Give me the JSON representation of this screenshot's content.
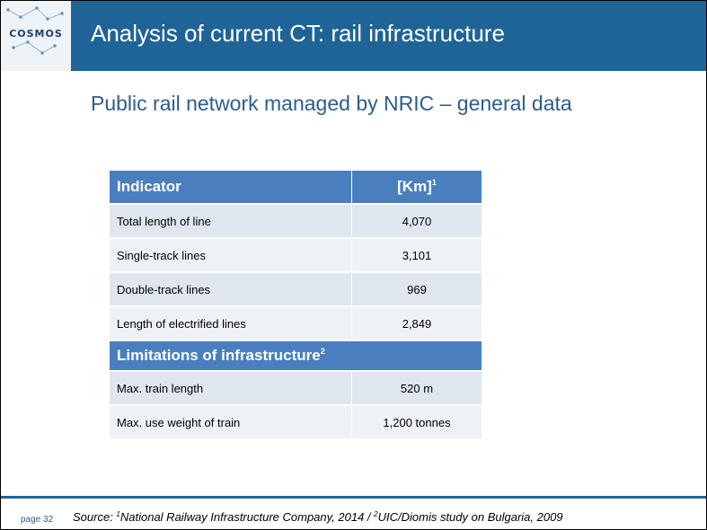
{
  "header": {
    "logo_text": "COSMOS",
    "title": "Analysis of current CT: rail infrastructure"
  },
  "subtitle": "Public rail network managed by NRIC – general data",
  "table": {
    "col_indicator": "Indicator",
    "col_unit": "[Km]",
    "col_unit_sup": "1",
    "rows": [
      {
        "label": "Total length of line",
        "value": "4,070"
      },
      {
        "label": "Single-track lines",
        "value": "3,101"
      },
      {
        "label": "Double-track lines",
        "value": "969"
      },
      {
        "label": "Length of electrified lines",
        "value": "2,849"
      }
    ],
    "section_title": "Limitations of infrastructure",
    "section_sup": "2",
    "limit_rows": [
      {
        "label": "Max. train length",
        "value": "520 m"
      },
      {
        "label": "Max. use weight of train",
        "value": "1,200 tonnes"
      }
    ]
  },
  "footer": {
    "page": "page 32",
    "source_prefix": "Source: ",
    "sup1": "1",
    "source_part1": "National Railway Infrastructure Company, 2014 / ",
    "sup2": "2",
    "source_part2": "UIC/Diomis study on Bulgaria, 2009"
  }
}
